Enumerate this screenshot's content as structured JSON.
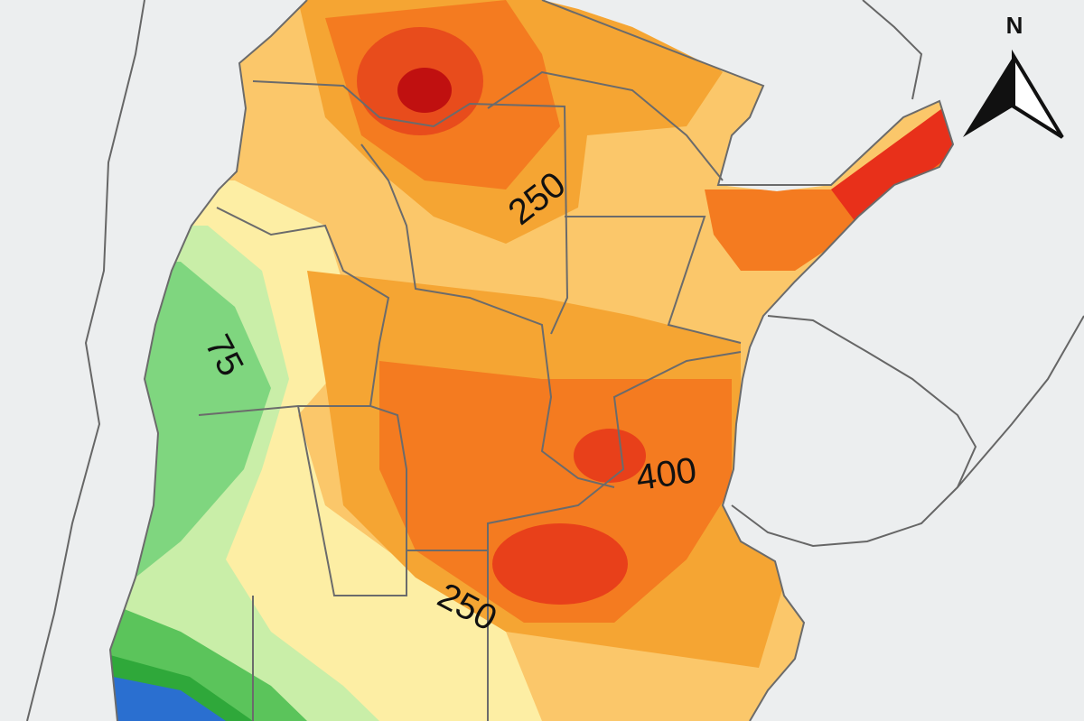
{
  "map": {
    "north_label": "N",
    "contour_labels": [
      "250",
      "75",
      "400",
      "250"
    ]
  }
}
